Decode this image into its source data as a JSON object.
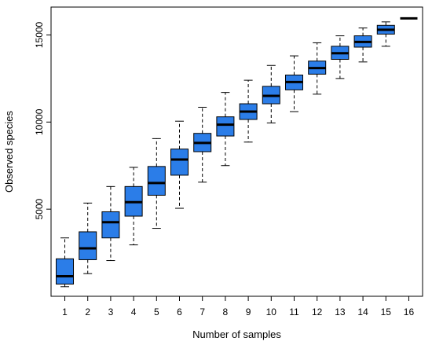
{
  "chart_data": {
    "type": "box",
    "title": "",
    "xlabel": "Number of samples",
    "ylabel": "Observed species",
    "categories": [
      "1",
      "2",
      "3",
      "4",
      "5",
      "6",
      "7",
      "8",
      "9",
      "10",
      "11",
      "12",
      "13",
      "14",
      "15",
      "16"
    ],
    "y_ticks": [
      5000,
      10000,
      15000
    ],
    "y_tick_labels": [
      "5000",
      "10000",
      "15000"
    ],
    "ylim": [
      0,
      16600
    ],
    "xlim": [
      0.4,
      16.6
    ],
    "box_color": "#2b7de8",
    "median_color": "#000000",
    "whisker_style": "dashed",
    "boxes": [
      {
        "category": "1",
        "min": 550,
        "q1": 700,
        "median": 1150,
        "q3": 2150,
        "max": 3350
      },
      {
        "category": "2",
        "min": 1300,
        "q1": 2100,
        "median": 2750,
        "q3": 3700,
        "max": 5350
      },
      {
        "category": "3",
        "min": 2050,
        "q1": 3350,
        "median": 4250,
        "q3": 4850,
        "max": 6300
      },
      {
        "category": "4",
        "min": 2950,
        "q1": 4600,
        "median": 5400,
        "q3": 6300,
        "max": 7400
      },
      {
        "category": "5",
        "min": 3900,
        "q1": 5800,
        "median": 6500,
        "q3": 7450,
        "max": 9050
      },
      {
        "category": "6",
        "min": 5050,
        "q1": 6950,
        "median": 7850,
        "q3": 8450,
        "max": 10050
      },
      {
        "category": "7",
        "min": 6550,
        "q1": 8300,
        "median": 8800,
        "q3": 9350,
        "max": 10850
      },
      {
        "category": "8",
        "min": 7500,
        "q1": 9200,
        "median": 9850,
        "q3": 10300,
        "max": 11700
      },
      {
        "category": "9",
        "min": 8850,
        "q1": 10150,
        "median": 10600,
        "q3": 11050,
        "max": 12400
      },
      {
        "category": "10",
        "min": 9950,
        "q1": 11050,
        "median": 11500,
        "q3": 12050,
        "max": 13250
      },
      {
        "category": "11",
        "min": 10600,
        "q1": 11850,
        "median": 12300,
        "q3": 12700,
        "max": 13800
      },
      {
        "category": "12",
        "min": 11600,
        "q1": 12750,
        "median": 13100,
        "q3": 13500,
        "max": 14550
      },
      {
        "category": "13",
        "min": 12500,
        "q1": 13600,
        "median": 13950,
        "q3": 14350,
        "max": 14950
      },
      {
        "category": "14",
        "min": 13450,
        "q1": 14300,
        "median": 14600,
        "q3": 14950,
        "max": 15400
      },
      {
        "category": "15",
        "min": 14350,
        "q1": 15050,
        "median": 15300,
        "q3": 15550,
        "max": 15750
      },
      {
        "category": "16",
        "min": 15950,
        "q1": 15950,
        "median": 15950,
        "q3": 15950,
        "max": 15950
      }
    ]
  }
}
